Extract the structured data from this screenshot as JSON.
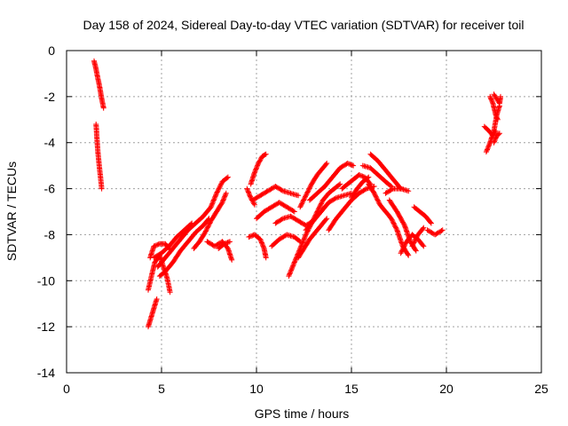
{
  "chart_data": {
    "type": "scatter",
    "title": "Day 158 of 2024, Sidereal Day-to-day VTEC variation (SDTVAR) for receiver toil",
    "xlabel": "GPS time / hours",
    "ylabel": "SDTVAR / TECUs",
    "xlim": [
      0,
      25
    ],
    "ylim": [
      -14,
      0
    ],
    "xticks": [
      0,
      5,
      10,
      15,
      20,
      25
    ],
    "yticks": [
      0,
      -2,
      -4,
      -6,
      -8,
      -10,
      -12,
      -14
    ],
    "grid": true,
    "marker": "+",
    "color": "#ff0000",
    "tracks": [
      [
        [
          1.45,
          -0.45
        ],
        [
          1.55,
          -0.8
        ],
        [
          1.62,
          -1.1
        ],
        [
          1.7,
          -1.4
        ],
        [
          1.78,
          -1.75
        ],
        [
          1.85,
          -2.1
        ],
        [
          1.95,
          -2.5
        ]
      ],
      [
        [
          1.55,
          -3.2
        ],
        [
          1.6,
          -3.8
        ],
        [
          1.65,
          -4.4
        ],
        [
          1.72,
          -5.0
        ],
        [
          1.8,
          -5.6
        ],
        [
          1.85,
          -6.0
        ]
      ],
      [
        [
          4.3,
          -12.0
        ],
        [
          4.45,
          -11.6
        ],
        [
          4.6,
          -11.2
        ],
        [
          4.75,
          -10.8
        ]
      ],
      [
        [
          4.3,
          -10.4
        ],
        [
          4.5,
          -9.7
        ],
        [
          4.65,
          -9.2
        ],
        [
          4.9,
          -8.9
        ],
        [
          5.1,
          -9.4
        ],
        [
          5.3,
          -9.9
        ],
        [
          5.45,
          -10.5
        ]
      ],
      [
        [
          4.4,
          -9.0
        ],
        [
          4.6,
          -8.5
        ],
        [
          4.9,
          -8.4
        ],
        [
          5.2,
          -8.4
        ],
        [
          5.4,
          -8.6
        ]
      ],
      [
        [
          4.9,
          -9.8
        ],
        [
          5.2,
          -9.6
        ],
        [
          5.6,
          -9.2
        ],
        [
          6.0,
          -8.7
        ],
        [
          6.4,
          -8.3
        ],
        [
          6.8,
          -7.9
        ],
        [
          7.2,
          -7.6
        ],
        [
          7.5,
          -7.3
        ]
      ],
      [
        [
          4.8,
          -9.4
        ],
        [
          5.2,
          -9.0
        ],
        [
          5.6,
          -8.6
        ],
        [
          6.0,
          -8.2
        ],
        [
          6.4,
          -7.8
        ],
        [
          6.8,
          -7.5
        ],
        [
          7.2,
          -7.2
        ],
        [
          7.6,
          -6.8
        ],
        [
          7.9,
          -6.2
        ],
        [
          8.2,
          -5.7
        ],
        [
          8.5,
          -5.5
        ]
      ],
      [
        [
          4.6,
          -9.0
        ],
        [
          5.0,
          -8.8
        ],
        [
          5.4,
          -8.5
        ],
        [
          5.8,
          -8.1
        ],
        [
          6.2,
          -7.8
        ],
        [
          6.6,
          -7.5
        ]
      ],
      [
        [
          6.7,
          -8.6
        ],
        [
          7.0,
          -8.3
        ],
        [
          7.3,
          -7.9
        ],
        [
          7.6,
          -7.4
        ],
        [
          7.9,
          -7.0
        ],
        [
          8.2,
          -6.6
        ],
        [
          8.4,
          -6.2
        ]
      ],
      [
        [
          7.4,
          -8.3
        ],
        [
          7.8,
          -8.5
        ],
        [
          8.2,
          -8.3
        ],
        [
          8.5,
          -8.6
        ],
        [
          8.7,
          -9.1
        ]
      ],
      [
        [
          8.0,
          -8.6
        ],
        [
          8.3,
          -8.4
        ],
        [
          8.6,
          -8.3
        ]
      ],
      [
        [
          9.5,
          -6.0
        ],
        [
          9.7,
          -6.4
        ],
        [
          9.9,
          -6.7
        ]
      ],
      [
        [
          9.6,
          -8.1
        ],
        [
          9.9,
          -8.0
        ],
        [
          10.2,
          -8.2
        ],
        [
          10.4,
          -8.6
        ],
        [
          10.5,
          -9.0
        ]
      ],
      [
        [
          9.7,
          -5.8
        ],
        [
          9.9,
          -5.3
        ],
        [
          10.1,
          -4.9
        ],
        [
          10.3,
          -4.6
        ],
        [
          10.5,
          -4.5
        ]
      ],
      [
        [
          9.8,
          -6.5
        ],
        [
          10.2,
          -6.3
        ],
        [
          10.6,
          -6.1
        ],
        [
          11.0,
          -5.9
        ],
        [
          11.4,
          -6.1
        ],
        [
          11.8,
          -6.2
        ],
        [
          12.2,
          -6.3
        ]
      ],
      [
        [
          10.0,
          -7.3
        ],
        [
          10.4,
          -7.0
        ],
        [
          10.8,
          -6.8
        ],
        [
          11.2,
          -6.6
        ],
        [
          11.6,
          -6.8
        ],
        [
          12.0,
          -7.0
        ]
      ],
      [
        [
          10.8,
          -8.5
        ],
        [
          11.2,
          -8.2
        ],
        [
          11.6,
          -8.0
        ],
        [
          12.0,
          -8.1
        ],
        [
          12.3,
          -8.3
        ]
      ],
      [
        [
          11.0,
          -7.5
        ],
        [
          11.4,
          -7.3
        ],
        [
          11.8,
          -7.2
        ],
        [
          12.2,
          -7.4
        ],
        [
          12.6,
          -7.6
        ],
        [
          13.0,
          -7.4
        ]
      ],
      [
        [
          11.7,
          -9.8
        ],
        [
          12.0,
          -9.2
        ],
        [
          12.3,
          -8.6
        ],
        [
          12.6,
          -8.0
        ],
        [
          12.9,
          -7.5
        ],
        [
          13.2,
          -7.0
        ],
        [
          13.5,
          -6.5
        ],
        [
          13.8,
          -6.2
        ],
        [
          14.1,
          -6.0
        ],
        [
          14.4,
          -5.8
        ]
      ],
      [
        [
          12.2,
          -9.0
        ],
        [
          12.5,
          -8.6
        ],
        [
          12.8,
          -8.2
        ],
        [
          13.1,
          -7.9
        ],
        [
          13.4,
          -7.6
        ],
        [
          13.7,
          -7.3
        ]
      ],
      [
        [
          12.3,
          -6.8
        ],
        [
          12.6,
          -6.3
        ],
        [
          12.9,
          -5.8
        ],
        [
          13.2,
          -5.4
        ],
        [
          13.5,
          -5.1
        ],
        [
          13.7,
          -4.9
        ]
      ],
      [
        [
          12.8,
          -6.5
        ],
        [
          13.2,
          -6.2
        ],
        [
          13.6,
          -5.9
        ],
        [
          14.0,
          -5.5
        ],
        [
          14.4,
          -5.1
        ],
        [
          14.8,
          -4.9
        ],
        [
          15.1,
          -5.0
        ]
      ],
      [
        [
          12.6,
          -7.8
        ],
        [
          13.0,
          -7.4
        ],
        [
          13.4,
          -7.0
        ],
        [
          13.8,
          -6.6
        ],
        [
          14.2,
          -6.4
        ],
        [
          14.6,
          -6.3
        ],
        [
          15.0,
          -6.2
        ]
      ],
      [
        [
          13.8,
          -7.8
        ],
        [
          14.2,
          -7.3
        ],
        [
          14.6,
          -6.9
        ],
        [
          15.0,
          -6.5
        ],
        [
          15.4,
          -6.2
        ],
        [
          15.8,
          -6.0
        ],
        [
          16.2,
          -5.9
        ]
      ],
      [
        [
          14.5,
          -6.0
        ],
        [
          14.8,
          -5.8
        ],
        [
          15.1,
          -5.6
        ],
        [
          15.4,
          -5.4
        ],
        [
          15.7,
          -5.5
        ],
        [
          16.0,
          -5.8
        ]
      ],
      [
        [
          15.0,
          -6.4
        ],
        [
          15.3,
          -6.0
        ],
        [
          15.6,
          -5.7
        ],
        [
          15.9,
          -5.5
        ]
      ],
      [
        [
          15.6,
          -5.0
        ],
        [
          16.0,
          -5.1
        ],
        [
          16.4,
          -5.4
        ],
        [
          16.8,
          -5.7
        ],
        [
          17.1,
          -5.9
        ]
      ],
      [
        [
          16.0,
          -4.5
        ],
        [
          16.4,
          -4.8
        ],
        [
          16.8,
          -5.2
        ],
        [
          17.2,
          -5.6
        ],
        [
          17.6,
          -6.0
        ]
      ],
      [
        [
          15.9,
          -5.8
        ],
        [
          16.2,
          -6.2
        ],
        [
          16.5,
          -6.7
        ],
        [
          16.8,
          -7.0
        ],
        [
          17.1,
          -7.3
        ],
        [
          17.4,
          -7.8
        ],
        [
          17.7,
          -8.5
        ],
        [
          18.0,
          -8.9
        ]
      ],
      [
        [
          16.8,
          -6.2
        ],
        [
          17.2,
          -6.0
        ],
        [
          17.6,
          -6.0
        ],
        [
          18.0,
          -6.1
        ]
      ],
      [
        [
          17.0,
          -6.5
        ],
        [
          17.4,
          -7.0
        ],
        [
          17.8,
          -7.6
        ],
        [
          18.1,
          -8.3
        ],
        [
          18.4,
          -8.7
        ]
      ],
      [
        [
          17.6,
          -8.8
        ],
        [
          17.9,
          -8.3
        ],
        [
          18.2,
          -8.0
        ],
        [
          18.5,
          -8.2
        ],
        [
          18.8,
          -8.5
        ]
      ],
      [
        [
          18.2,
          -8.5
        ],
        [
          18.5,
          -8.0
        ],
        [
          18.8,
          -7.7
        ]
      ],
      [
        [
          18.3,
          -6.8
        ],
        [
          18.6,
          -7.0
        ],
        [
          18.9,
          -7.2
        ],
        [
          19.2,
          -7.5
        ]
      ],
      [
        [
          19.0,
          -7.8
        ],
        [
          19.4,
          -8.0
        ],
        [
          19.8,
          -7.8
        ]
      ],
      [
        [
          22.0,
          -3.3
        ],
        [
          22.25,
          -3.5
        ],
        [
          22.45,
          -3.7
        ],
        [
          22.6,
          -3.5
        ]
      ],
      [
        [
          22.1,
          -4.4
        ],
        [
          22.3,
          -4.0
        ],
        [
          22.5,
          -3.5
        ],
        [
          22.65,
          -2.8
        ],
        [
          22.8,
          -2.4
        ]
      ],
      [
        [
          22.5,
          -4.0
        ],
        [
          22.65,
          -3.7
        ],
        [
          22.8,
          -3.6
        ]
      ],
      [
        [
          22.3,
          -2.0
        ],
        [
          22.45,
          -2.3
        ],
        [
          22.6,
          -2.8
        ],
        [
          22.7,
          -3.0
        ]
      ],
      [
        [
          22.5,
          -1.9
        ],
        [
          22.65,
          -2.1
        ],
        [
          22.8,
          -2.3
        ],
        [
          22.85,
          -2.0
        ]
      ]
    ]
  }
}
